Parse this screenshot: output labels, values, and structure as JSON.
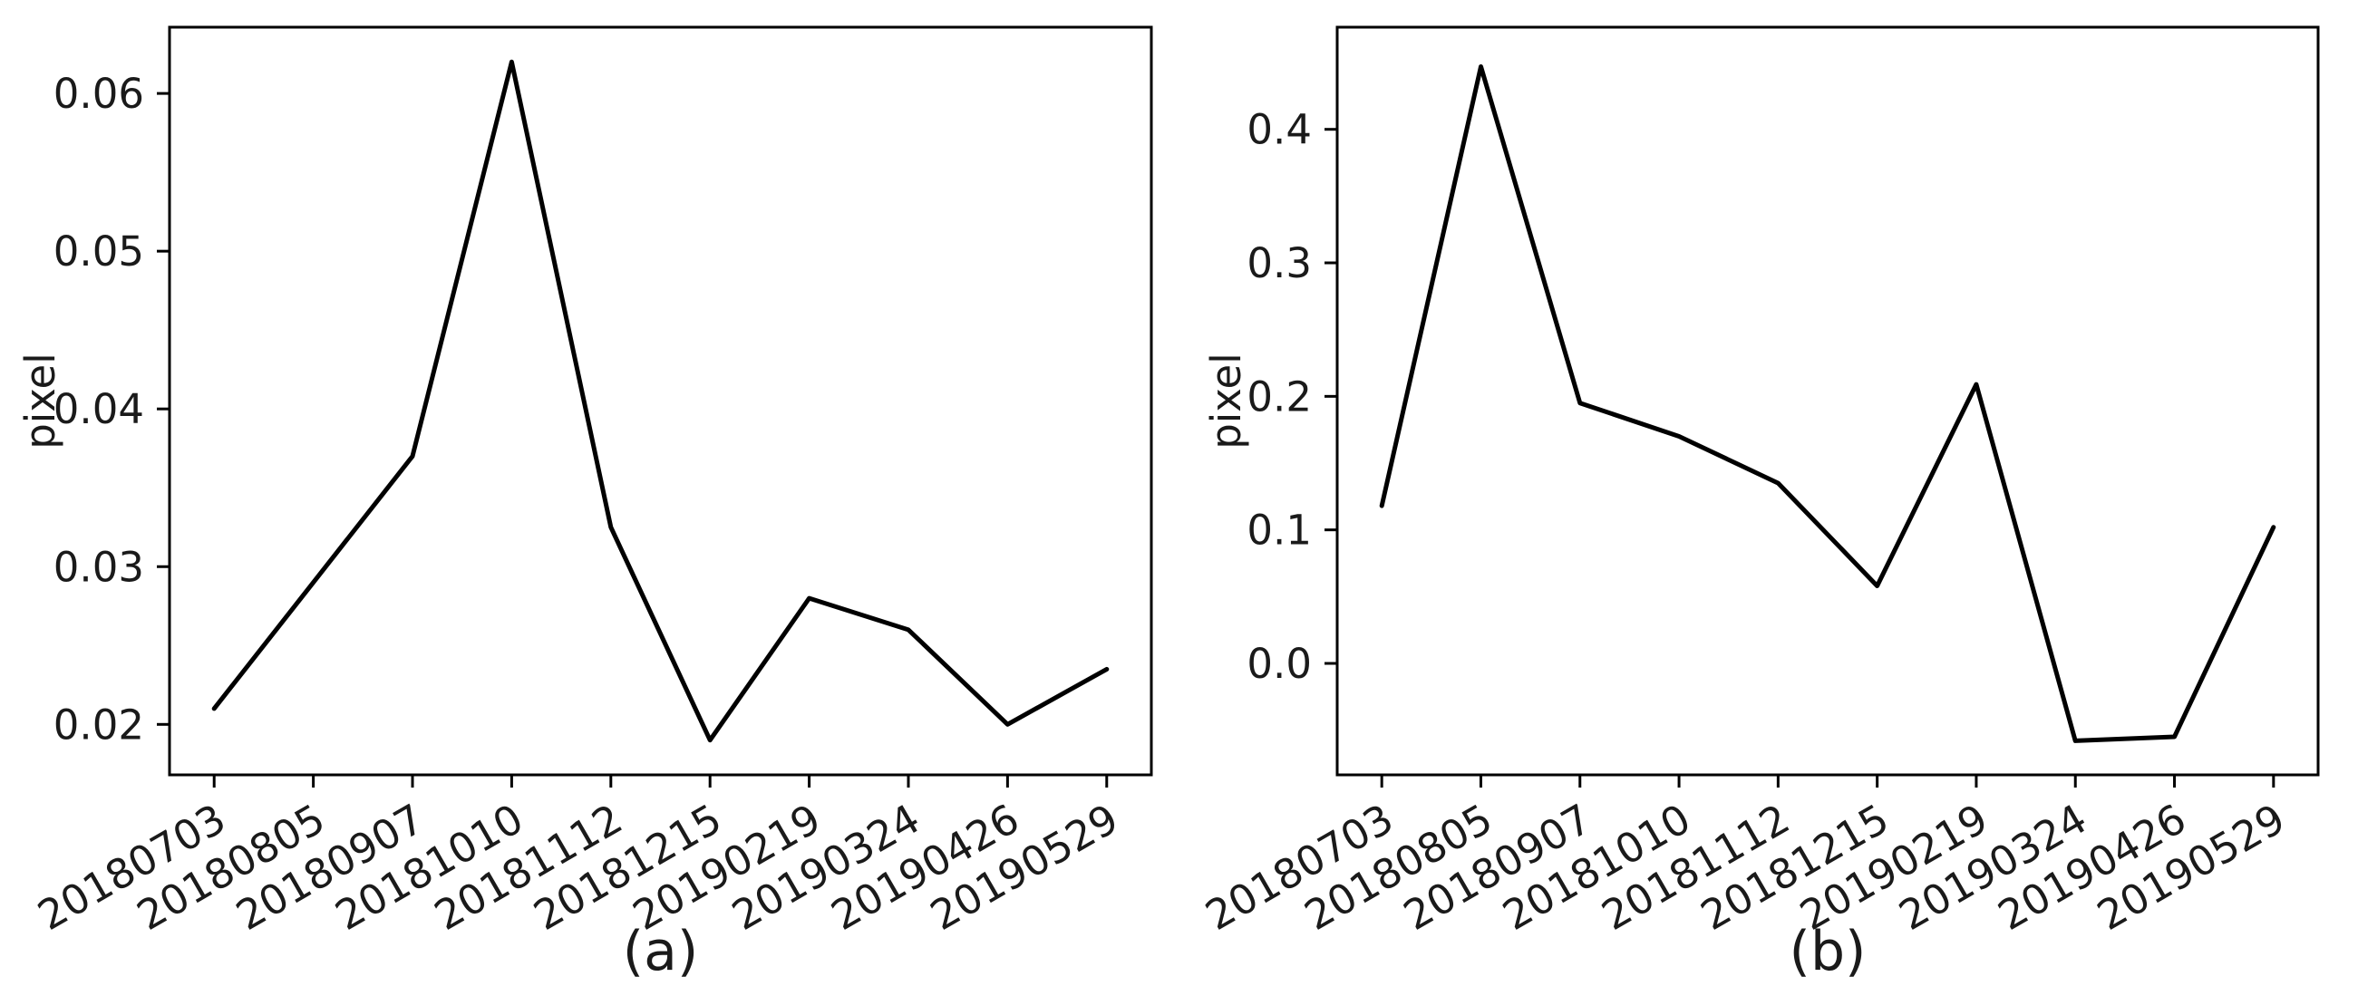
{
  "figure": {
    "background_color": "#ffffff",
    "line_color": "#000000",
    "text_color": "#1a1a1a"
  },
  "chart_data": [
    {
      "id": "a",
      "type": "line",
      "caption": "(a)",
      "ylabel": "pixel",
      "legend": null,
      "grid": false,
      "x_tick_rotation_deg": 30,
      "categories": [
        "20180703",
        "20180805",
        "20180907",
        "20181010",
        "20181112",
        "20181215",
        "20190219",
        "20190324",
        "20190426",
        "20190529"
      ],
      "values": [
        0.021,
        0.029,
        0.037,
        0.062,
        0.0325,
        0.019,
        0.028,
        0.026,
        0.02,
        0.0235
      ],
      "yticks": [
        0.02,
        0.03,
        0.04,
        0.05,
        0.06
      ],
      "ytick_labels": [
        "0.02",
        "0.03",
        "0.04",
        "0.05",
        "0.06"
      ],
      "ylim": [
        0.0168,
        0.0642
      ]
    },
    {
      "id": "b",
      "type": "line",
      "caption": "(b)",
      "ylabel": "pixel",
      "legend": null,
      "grid": false,
      "x_tick_rotation_deg": 30,
      "categories": [
        "20180703",
        "20180805",
        "20180907",
        "20181010",
        "20181112",
        "20181215",
        "20190219",
        "20190324",
        "20190426",
        "20190529"
      ],
      "values": [
        0.118,
        0.447,
        0.195,
        0.17,
        0.135,
        0.058,
        0.209,
        -0.058,
        -0.055,
        0.102
      ],
      "yticks": [
        0.0,
        0.1,
        0.2,
        0.3,
        0.4
      ],
      "ytick_labels": [
        "0.0",
        "0.1",
        "0.2",
        "0.3",
        "0.4"
      ],
      "ylim": [
        -0.0835,
        0.4765
      ]
    }
  ]
}
